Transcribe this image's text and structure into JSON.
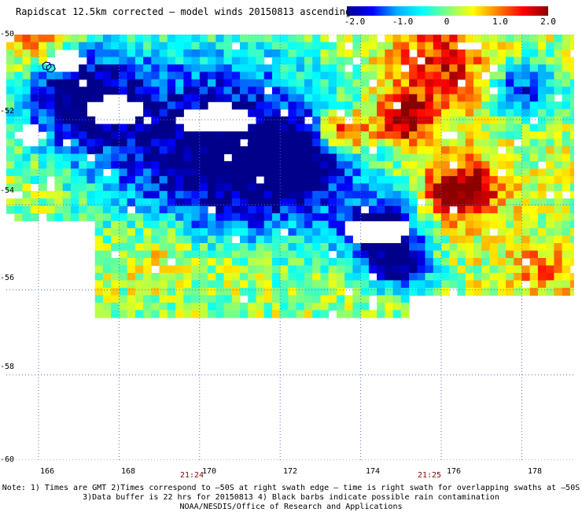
{
  "title": "Rapidscat 12.5km corrected – model winds 20150813 ascending",
  "colorbar": {
    "labels": [
      "-2.0",
      "-1.0",
      "0",
      "1.0",
      "2.0"
    ],
    "stops": [
      "#00008b",
      "#0000ff",
      "#00b0ff",
      "#00ffff",
      "#80ff80",
      "#ffff00",
      "#ff8000",
      "#ff0000",
      "#8b0000"
    ],
    "range": [
      -2.0,
      2.0
    ]
  },
  "map": {
    "lat_range": [
      -60,
      -50
    ],
    "lon_range": [
      165.2,
      179.3
    ],
    "lat_labels": [
      "-50",
      "-52",
      "-54",
      "-56",
      "-58",
      "-60"
    ],
    "lon_labels": [
      "166",
      "168",
      "170",
      "172",
      "174",
      "176",
      "178"
    ],
    "time_labels": [
      {
        "text": "21:24",
        "lon": 169.5
      },
      {
        "text": "21:25",
        "lon": 175.4
      }
    ],
    "grid_color": "#5a6cc8"
  },
  "notes": [
    "Note: 1) Times are GMT 2)Times correspond to –50S at right swath edge – time is right swath for overlapping swaths at –50S",
    "3)Data buffer is 22 hrs for 20150813 4) Black barbs indicate possible rain contamination",
    "NOAA/NESDIS/Office of Research and Applications"
  ]
}
